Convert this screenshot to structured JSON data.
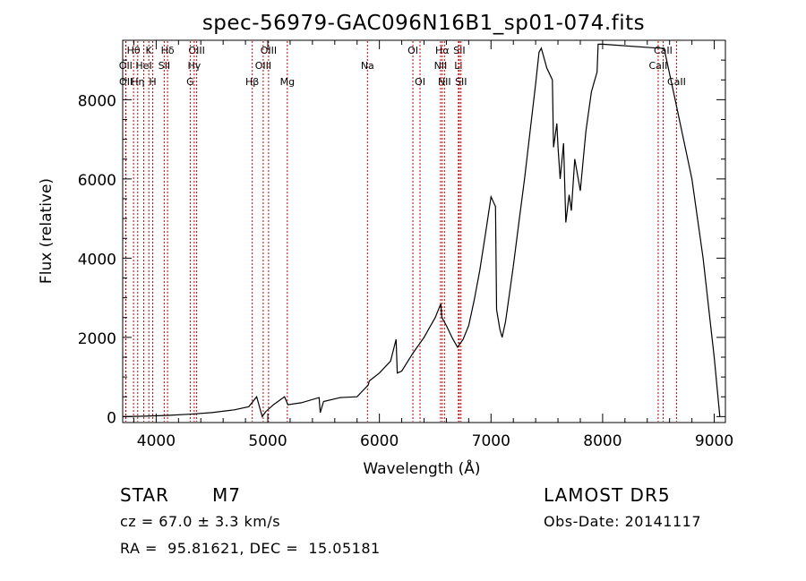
{
  "chart_data": {
    "type": "line",
    "title": "spec-56979-GAC096N16B1_sp01-074.fits",
    "xlabel": "Wavelength (Å)",
    "ylabel": "Flux (relative)",
    "xlim": [
      3700,
      9100
    ],
    "ylim": [
      -150,
      9500
    ],
    "xticks": [
      4000,
      5000,
      6000,
      7000,
      8000,
      9000
    ],
    "yticks": [
      0,
      2000,
      4000,
      6000,
      8000
    ],
    "grid": false,
    "series": [
      {
        "x": [
          3700,
          3900,
          4100,
          4300,
          4500,
          4700,
          4830,
          4900,
          4950,
          4980,
          5050,
          5150,
          5180,
          5300,
          5460,
          5470,
          5500,
          5650,
          5800,
          5900,
          5910,
          6000,
          6100,
          6150,
          6160,
          6200,
          6300,
          6400,
          6450,
          6500,
          6550,
          6560,
          6600,
          6650,
          6700,
          6750,
          6800,
          6850,
          6900,
          6950,
          7000,
          7040,
          7050,
          7080,
          7100,
          7130,
          7150,
          7200,
          7250,
          7300,
          7350,
          7400,
          7430,
          7450,
          7470,
          7500,
          7550,
          7560,
          7590,
          7600,
          7620,
          7650,
          7670,
          7700,
          7720,
          7750,
          7800,
          7850,
          7900,
          7950,
          7960,
          8000,
          8500,
          8550,
          8650,
          8800,
          8900,
          9000,
          9050
        ],
        "y": [
          0,
          10,
          30,
          60,
          100,
          170,
          250,
          500,
          0,
          120,
          300,
          500,
          300,
          350,
          480,
          100,
          380,
          480,
          500,
          800,
          900,
          1100,
          1400,
          1950,
          1100,
          1150,
          1600,
          2000,
          2250,
          2500,
          2850,
          2500,
          2300,
          2000,
          1750,
          1950,
          2300,
          2950,
          3700,
          4600,
          5550,
          5300,
          2700,
          2200,
          2000,
          2400,
          2800,
          3800,
          4900,
          6000,
          7200,
          8400,
          9200,
          9300,
          9100,
          8800,
          8500,
          6800,
          7400,
          6800,
          6000,
          6900,
          4900,
          5600,
          5200,
          6500,
          5700,
          7200,
          8200,
          8700,
          9400,
          9400,
          9300,
          9300,
          8000,
          6000,
          4000,
          1500,
          0
        ]
      }
    ],
    "line_markers": [
      {
        "label": "Hθ",
        "x": 3797,
        "row": 0
      },
      {
        "label": "OII",
        "x": 3727,
        "row": 1
      },
      {
        "label": "OII",
        "x": 3729,
        "row": 2
      },
      {
        "label": "HeI",
        "x": 3889,
        "row": 1
      },
      {
        "label": "Hη",
        "x": 3835,
        "row": 2
      },
      {
        "label": "K",
        "x": 3934,
        "row": 0
      },
      {
        "label": "H",
        "x": 3969,
        "row": 2
      },
      {
        "label": "SII",
        "x": 4072,
        "row": 1
      },
      {
        "label": "Hδ",
        "x": 4102,
        "row": 0
      },
      {
        "label": "OIII",
        "x": 4363,
        "row": 0
      },
      {
        "label": "Hγ",
        "x": 4341,
        "row": 1
      },
      {
        "label": "G",
        "x": 4305,
        "row": 2
      },
      {
        "label": "Hβ",
        "x": 4861,
        "row": 2
      },
      {
        "label": "OIII",
        "x": 5007,
        "row": 0
      },
      {
        "label": "OIII",
        "x": 4959,
        "row": 1
      },
      {
        "label": "Mg",
        "x": 5175,
        "row": 2
      },
      {
        "label": "Na",
        "x": 5893,
        "row": 1
      },
      {
        "label": "OI",
        "x": 6300,
        "row": 0
      },
      {
        "label": "OI",
        "x": 6364,
        "row": 2
      },
      {
        "label": "Hα",
        "x": 6563,
        "row": 0
      },
      {
        "label": "NII",
        "x": 6548,
        "row": 1
      },
      {
        "label": "NII",
        "x": 6583,
        "row": 2
      },
      {
        "label": "SII",
        "x": 6716,
        "row": 0
      },
      {
        "label": "Li",
        "x": 6708,
        "row": 1
      },
      {
        "label": "SII",
        "x": 6731,
        "row": 2
      },
      {
        "label": "CaII",
        "x": 8542,
        "row": 0
      },
      {
        "label": "CaII",
        "x": 8498,
        "row": 1
      },
      {
        "label": "CaII",
        "x": 8662,
        "row": 2
      }
    ]
  },
  "info": {
    "class": "STAR",
    "subclass": "M7",
    "survey": "LAMOST DR5",
    "cz": "cz = 67.0 ± 3.3 km/s",
    "obs_date": "Obs-Date: 20141117",
    "radec": "RA =  95.81621, DEC =  15.05181"
  }
}
